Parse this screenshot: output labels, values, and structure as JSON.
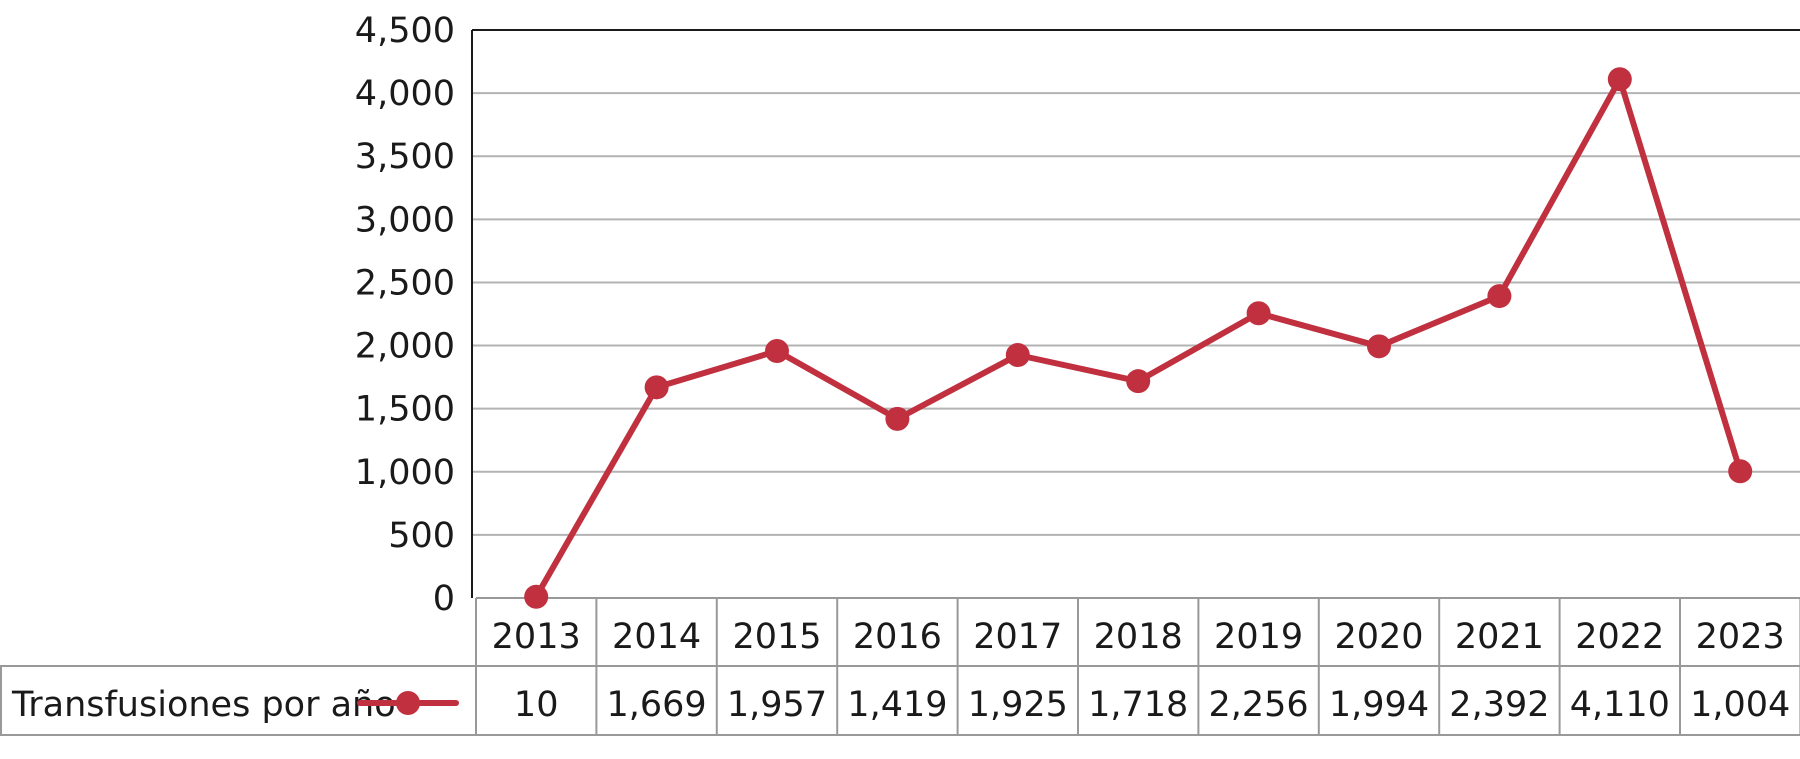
{
  "chart_data": {
    "type": "line",
    "categories": [
      "2013",
      "2014",
      "2015",
      "2016",
      "2017",
      "2018",
      "2019",
      "2020",
      "2021",
      "2022",
      "2023"
    ],
    "series": [
      {
        "name": "Transfusiones por año",
        "values": [
          10,
          1669,
          1957,
          1419,
          1925,
          1718,
          2256,
          1994,
          2392,
          4110,
          1004
        ],
        "color": "#c0303f"
      }
    ],
    "value_labels": [
      "10",
      "1,669",
      "1,957",
      "1,419",
      "1,925",
      "1,718",
      "2,256",
      "1,994",
      "2,392",
      "4,110",
      "1,004"
    ],
    "yticks": [
      "0",
      "500",
      "1,000",
      "1,500",
      "2,000",
      "2,500",
      "3,000",
      "3,500",
      "4,000",
      "4,500"
    ],
    "ylim": [
      0,
      4500
    ],
    "grid": true,
    "legend": "data-table-left",
    "gridColor": "#b3b3b3",
    "tableBorderColor": "#999999"
  }
}
